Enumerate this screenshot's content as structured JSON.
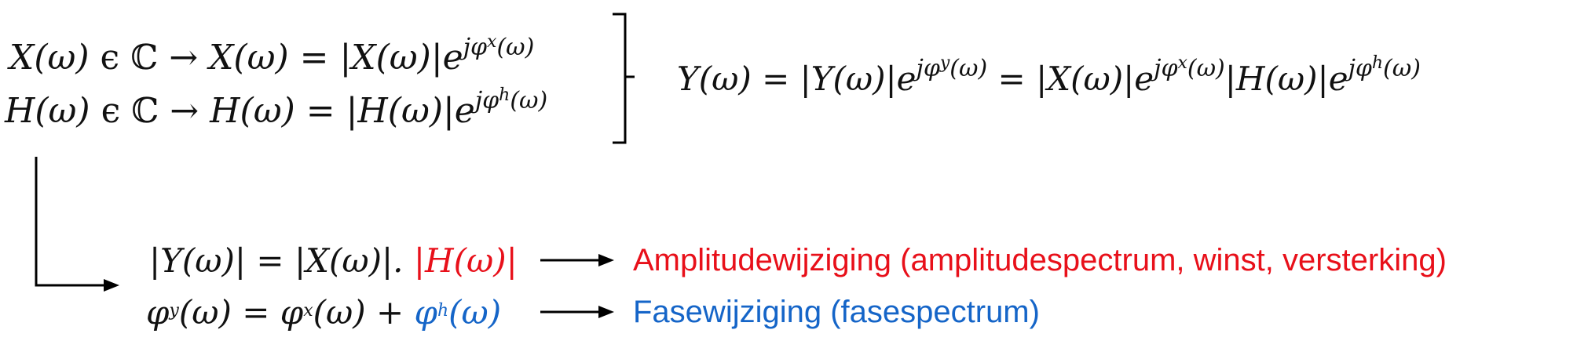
{
  "eq1": {
    "lhs": "X(ω)",
    "in": "ϵ",
    "set": "ℂ",
    "arrow": "→",
    "rhs_base": "X(ω) = |X(ω)|e",
    "exp": "jφ",
    "exp_sub": "x",
    "exp_arg": "(ω)"
  },
  "eq2": {
    "lhs": "H(ω)",
    "in": "ϵ",
    "set": "ℂ",
    "arrow": "→",
    "rhs_base": "H(ω) = |H(ω)|e",
    "exp": "jφ",
    "exp_sub": "h",
    "exp_arg": "(ω)"
  },
  "eqY": {
    "part1": "Y(ω) = |Y(ω)|e",
    "exp1": "jφ",
    "sub1": "y",
    "arg1": "(ω)",
    "part2": " = |X(ω)|e",
    "exp2": "jφ",
    "sub2": "x",
    "arg2": "(ω)",
    "part3": "|H(ω)|e",
    "exp3": "jφ",
    "sub3": "h",
    "arg3": "(ω)"
  },
  "amp": {
    "lhs": "|Y(ω)| = |X(ω)|. ",
    "highlight": "|H(ω)|",
    "label": "Amplitudewijziging (amplitudespectrum, winst, versterking)"
  },
  "phase": {
    "phi": "φ",
    "sub_y": "y",
    "mid": "(ω) = φ",
    "sub_x": "x",
    "plus": "(ω) + ",
    "phi_h": "φ",
    "sub_h": "h",
    "arg_h": "(ω)",
    "label": "Fasewijziging (fasespectrum)"
  },
  "colors": {
    "red": "#e8101a",
    "blue": "#1565c8"
  }
}
